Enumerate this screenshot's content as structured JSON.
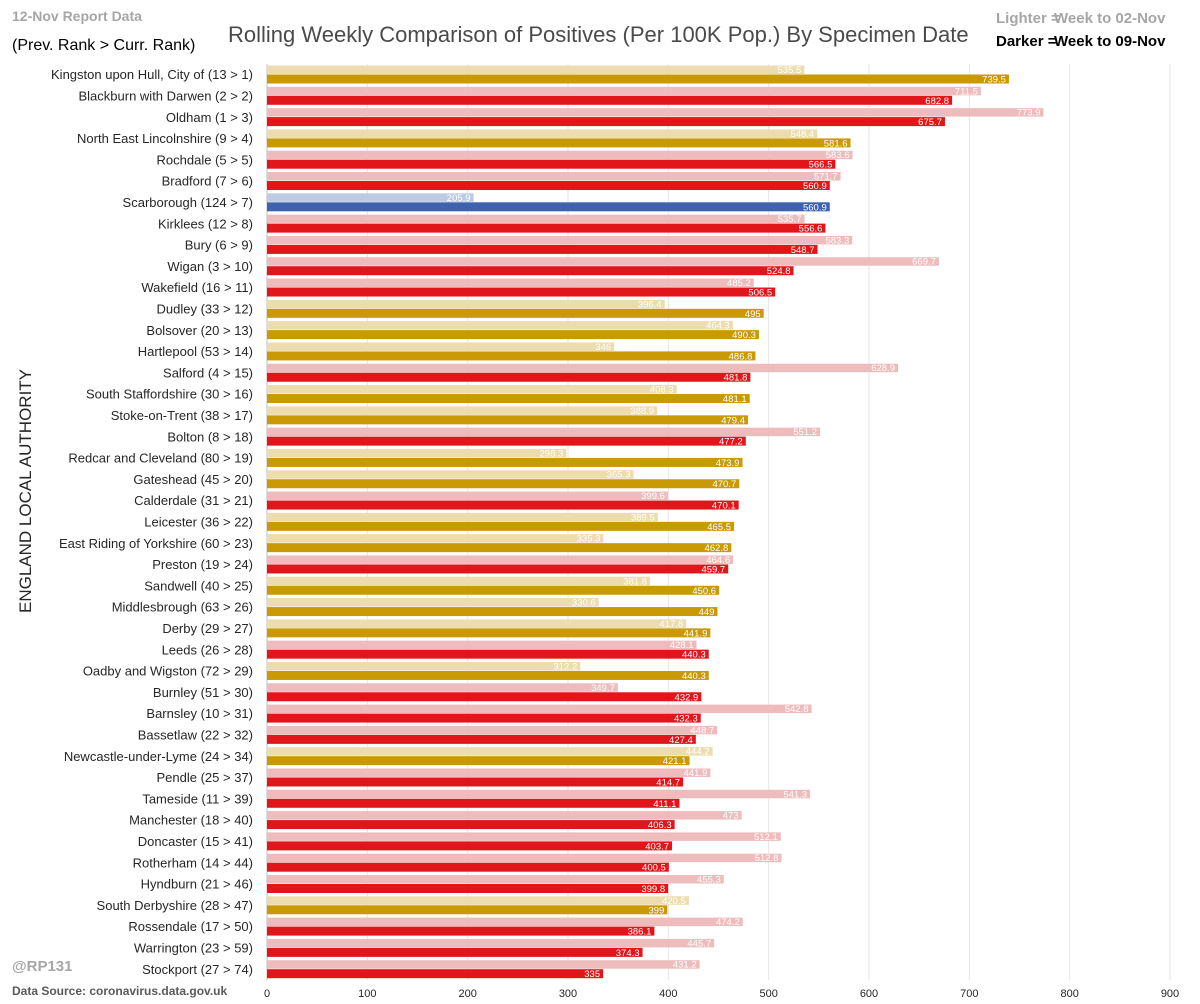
{
  "header": {
    "report_date": "12-Nov Report Data",
    "rank_note": "(Prev. Rank > Curr. Rank)",
    "title": "Rolling Weekly Comparison of Positives  (Per 100K Pop.) By Specimen Date",
    "legend_light_key": "Lighter =",
    "legend_light_value": "Week to 02-Nov",
    "legend_dark_key": "Darker =",
    "legend_dark_value": "Week to 09-Nov"
  },
  "footer": {
    "credit": "@RP131",
    "source": "Data Source: coronavirus.data.gov.uk"
  },
  "colors": {
    "red": "#e0161b",
    "gold": "#c99a06",
    "blue": "#3e62ad",
    "red_light": "#efbcbd",
    "gold_light": "#ecdcae",
    "blue_light": "#bccbe3",
    "gridline": "#e6e6e6"
  },
  "chart_data": {
    "type": "bar",
    "orientation": "horizontal",
    "title": "Rolling Weekly Comparison of Positives  (Per 100K Pop.) By Specimen Date",
    "ylabel": "ENGLAND LOCAL AUTHORITY",
    "xlabel": "",
    "xlim": [
      0,
      900
    ],
    "x_ticks": [
      0,
      100,
      200,
      300,
      400,
      500,
      600,
      700,
      800,
      900
    ],
    "grid": true,
    "legend": "top-right",
    "categories": [
      "Kingston upon Hull, City of (13 > 1)",
      "Blackburn with Darwen (2 > 2)",
      "Oldham (1 > 3)",
      "North East Lincolnshire (9 > 4)",
      "Rochdale (5 > 5)",
      "Bradford (7 > 6)",
      "Scarborough (124 > 7)",
      "Kirklees (12 > 8)",
      "Bury (6 > 9)",
      "Wigan (3 > 10)",
      "Wakefield (16 > 11)",
      "Dudley (33 > 12)",
      "Bolsover (20 > 13)",
      "Hartlepool (53 > 14)",
      "Salford (4 > 15)",
      "South Staffordshire (30 > 16)",
      "Stoke-on-Trent (38 > 17)",
      "Bolton (8 > 18)",
      "Redcar and Cleveland (80 > 19)",
      "Gateshead (45 > 20)",
      "Calderdale (31 > 21)",
      "Leicester (36 > 22)",
      "East Riding of Yorkshire (60 > 23)",
      "Preston (19 > 24)",
      "Sandwell (40 > 25)",
      "Middlesbrough (63 > 26)",
      "Derby (29 > 27)",
      "Leeds (26 > 28)",
      "Oadby and Wigston (72 > 29)",
      "Burnley (51 > 30)",
      "Barnsley (10 > 31)",
      "Bassetlaw (22 > 32)",
      "Newcastle-under-Lyme (24 > 34)",
      "Pendle (25 > 37)",
      "Tameside (11 > 39)",
      "Manchester (18 > 40)",
      "Doncaster (15 > 41)",
      "Rotherham (14 > 44)",
      "Hyndburn (21 > 46)",
      "South Derbyshire (28 > 47)",
      "Rossendale (17 > 50)",
      "Warrington (23 > 59)",
      "Stockport (27 > 74)"
    ],
    "series": [
      {
        "name": "Week to 02-Nov",
        "values": [
          535.5,
          711.5,
          773.9,
          548.4,
          583.6,
          571.7,
          205.9,
          535.7,
          583.3,
          669.7,
          485.2,
          396.4,
          464.3,
          346,
          628.9,
          408.3,
          388.9,
          551.2,
          298.3,
          365.3,
          399.6,
          389.5,
          335.3,
          464.6,
          381.8,
          330.6,
          417.8,
          428.1,
          312.2,
          349.7,
          542.8,
          448.7,
          444.2,
          441.9,
          541.3,
          473,
          512.1,
          512.8,
          455.3,
          420.5,
          474.2,
          445.7,
          431.2
        ]
      },
      {
        "name": "Week to 09-Nov",
        "values": [
          739.5,
          682.8,
          675.7,
          581.6,
          566.5,
          560.9,
          560.9,
          556.6,
          548.7,
          524.8,
          506.5,
          495,
          490.3,
          486.8,
          481.8,
          481.1,
          479.4,
          477.2,
          473.9,
          470.7,
          470.1,
          465.5,
          462.8,
          459.7,
          450.6,
          449,
          441.9,
          440.3,
          440.3,
          432.9,
          432.3,
          427.4,
          421.1,
          414.7,
          411.1,
          406.3,
          403.7,
          400.5,
          399.8,
          399,
          386.1,
          374.3,
          335
        ]
      }
    ],
    "region_color": [
      "gold",
      "red",
      "red",
      "gold",
      "red",
      "red",
      "blue",
      "red",
      "red",
      "red",
      "red",
      "gold",
      "gold",
      "gold",
      "red",
      "gold",
      "gold",
      "red",
      "gold",
      "gold",
      "red",
      "gold",
      "gold",
      "red",
      "gold",
      "gold",
      "gold",
      "red",
      "gold",
      "red",
      "red",
      "red",
      "gold",
      "red",
      "red",
      "red",
      "red",
      "red",
      "red",
      "gold",
      "red",
      "red",
      "red"
    ]
  }
}
